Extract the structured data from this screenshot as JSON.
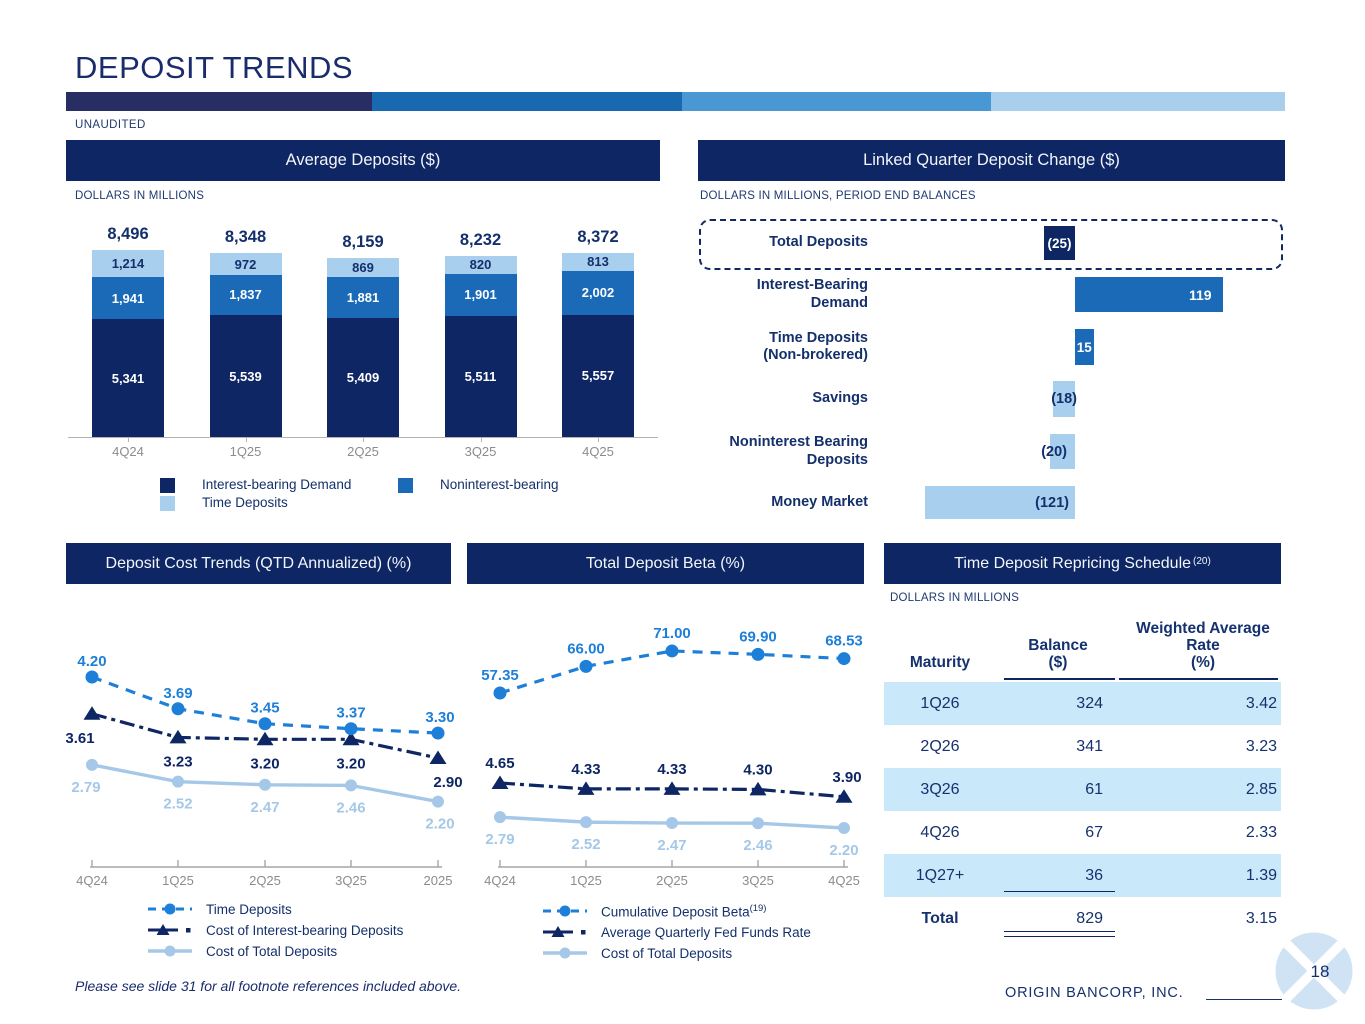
{
  "slide": {
    "title": "DEPOSIT TRENDS",
    "status": "UNAUDITED",
    "footnote": "Please see slide 31 for all footnote references included above.",
    "company": "ORIGIN BANCORP, INC.",
    "page_number": "18"
  },
  "panels": {
    "avg_deposits": {
      "title": "Average Deposits ($)",
      "caption": "DOLLARS IN MILLIONS"
    },
    "linked_quarter": {
      "title": "Linked Quarter Deposit Change ($)",
      "caption": "DOLLARS IN MILLIONS, PERIOD END BALANCES"
    },
    "cost_trends": {
      "title": "Deposit Cost Trends (QTD Annualized) (%)"
    },
    "deposit_beta": {
      "title": "Total Deposit Beta (%)"
    },
    "repricing": {
      "title": "Time Deposit Repricing Schedule",
      "title_sup": "(20)",
      "caption": "DOLLARS IN MILLIONS"
    }
  },
  "colors": {
    "navy": "#0e2663",
    "mid_blue": "#1a6ab8",
    "bright_blue": "#1e7fd8",
    "light_blue": "#a9cfee",
    "light_line": "#a5c8e8",
    "row_stripe": "#c9e8f9",
    "band": [
      "#282d64",
      "#1969b1",
      "#4a98d3",
      "#a9cfec"
    ]
  },
  "chart_data": [
    {
      "id": "avg_deposits",
      "type": "bar",
      "stacked": true,
      "title": "Average Deposits ($)",
      "units": "DOLLARS IN MILLIONS",
      "categories": [
        "4Q24",
        "1Q25",
        "2Q25",
        "3Q25",
        "4Q25"
      ],
      "series": [
        {
          "name": "Interest-bearing Demand",
          "values": [
            5341,
            5539,
            5409,
            5511,
            5557
          ],
          "labels": [
            "5,341",
            "5,539",
            "5,409",
            "5,511",
            "5,557"
          ]
        },
        {
          "name": "Noninterest-bearing",
          "values": [
            1941,
            1837,
            1881,
            1901,
            2002
          ],
          "labels": [
            "1,941",
            "1,837",
            "1,881",
            "1,901",
            "2,002"
          ]
        },
        {
          "name": "Time Deposits",
          "values": [
            1214,
            972,
            869,
            820,
            813
          ],
          "labels": [
            "1,214",
            "972",
            "869",
            "820",
            "813"
          ]
        }
      ],
      "totals": [
        8496,
        8348,
        8159,
        8232,
        8372
      ],
      "total_labels": [
        "8,496",
        "8,348",
        "8,159",
        "8,232",
        "8,372"
      ],
      "legend_position": "bottom"
    },
    {
      "id": "linked_quarter",
      "type": "bar",
      "orientation": "horizontal",
      "title": "Linked Quarter Deposit Change ($)",
      "units": "DOLLARS IN MILLIONS, PERIOD END BALANCES",
      "rows": [
        {
          "label": [
            "Total Deposits"
          ],
          "value": -25,
          "display": "(25)",
          "color": "navy",
          "label_style": "white-center",
          "boxed": true
        },
        {
          "label": [
            "Interest-Bearing",
            "Demand"
          ],
          "value": 119,
          "display": "119",
          "color": "mid_blue",
          "label_style": "white-right"
        },
        {
          "label": [
            "Time Deposits",
            "(Non-brokered)"
          ],
          "value": 15,
          "display": "15",
          "color": "mid_blue",
          "label_style": "white-center"
        },
        {
          "label": [
            "Savings"
          ],
          "value": -18,
          "display": "(18)",
          "color": "light_blue",
          "label_style": "navy-left"
        },
        {
          "label": [
            "Noninterest Bearing",
            "Deposits"
          ],
          "value": -20,
          "display": "(20)",
          "color": "light_blue",
          "label_style": "navy-left"
        },
        {
          "label": [
            "Money Market"
          ],
          "value": -121,
          "display": "(121)",
          "color": "light_blue",
          "label_style": "navy-left"
        }
      ]
    },
    {
      "id": "cost_trends",
      "type": "line",
      "title": "Deposit Cost Trends (QTD Annualized) (%)",
      "categories": [
        "4Q24",
        "1Q25",
        "2Q25",
        "3Q25",
        "2025"
      ],
      "series": [
        {
          "name": "Time Deposits",
          "values": [
            4.2,
            3.69,
            3.45,
            3.37,
            3.3
          ],
          "labels": [
            "4.20",
            "3.69",
            "3.45",
            "3.37",
            "3.30"
          ]
        },
        {
          "name": "Cost of Interest-bearing Deposits",
          "values": [
            3.61,
            3.23,
            3.2,
            3.2,
            2.9
          ],
          "labels": [
            "3.61",
            "3.23",
            "3.20",
            "3.20",
            "2.90"
          ]
        },
        {
          "name": "Cost of Total Deposits",
          "values": [
            2.79,
            2.52,
            2.47,
            2.46,
            2.2
          ],
          "labels": [
            "2.79",
            "2.52",
            "2.47",
            "2.46",
            "2.20"
          ]
        }
      ],
      "legend": [
        {
          "label": "Time Deposits"
        },
        {
          "label": "Cost of Interest-bearing Deposits"
        },
        {
          "label": "Cost of Total Deposits"
        }
      ]
    },
    {
      "id": "deposit_beta",
      "type": "line",
      "title": "Total Deposit Beta (%)",
      "categories": [
        "4Q24",
        "1Q25",
        "2Q25",
        "3Q25",
        "4Q25"
      ],
      "series": [
        {
          "name": "Cumulative Deposit Beta",
          "sup": "(19)",
          "values": [
            57.35,
            66.0,
            71.0,
            69.9,
            68.53
          ],
          "labels": [
            "57.35",
            "66.00",
            "71.00",
            "69.90",
            "68.53"
          ]
        },
        {
          "name": "Average Quarterly Fed Funds Rate",
          "values": [
            4.65,
            4.33,
            4.33,
            4.3,
            3.9
          ],
          "labels": [
            "4.65",
            "4.33",
            "4.33",
            "4.30",
            "3.90"
          ]
        },
        {
          "name": "Cost of Total Deposits",
          "values": [
            2.79,
            2.52,
            2.47,
            2.46,
            2.2
          ],
          "labels": [
            "2.79",
            "2.52",
            "2.47",
            "2.46",
            "2.20"
          ]
        }
      ],
      "legend": [
        {
          "label": "Cumulative Deposit Beta",
          "sup": "(19)"
        },
        {
          "label": "Average Quarterly Fed Funds Rate"
        },
        {
          "label": "Cost of Total Deposits"
        }
      ]
    },
    {
      "id": "repricing",
      "type": "table",
      "title": "Time Deposit Repricing Schedule (20)",
      "units": "DOLLARS IN MILLIONS",
      "columns": {
        "maturity": [
          "Maturity"
        ],
        "balance": [
          "Balance",
          "($)"
        ],
        "rate": [
          "Weighted Average",
          "Rate",
          "(%)"
        ]
      },
      "rows": [
        {
          "maturity": "1Q26",
          "balance": "324",
          "rate": "3.42"
        },
        {
          "maturity": "2Q26",
          "balance": "341",
          "rate": "3.23"
        },
        {
          "maturity": "3Q26",
          "balance": "61",
          "rate": "2.85"
        },
        {
          "maturity": "4Q26",
          "balance": "67",
          "rate": "2.33"
        },
        {
          "maturity": "1Q27+",
          "balance": "36",
          "rate": "1.39"
        }
      ],
      "total_row": {
        "maturity": "Total",
        "balance": "829",
        "rate": "3.15"
      }
    }
  ]
}
